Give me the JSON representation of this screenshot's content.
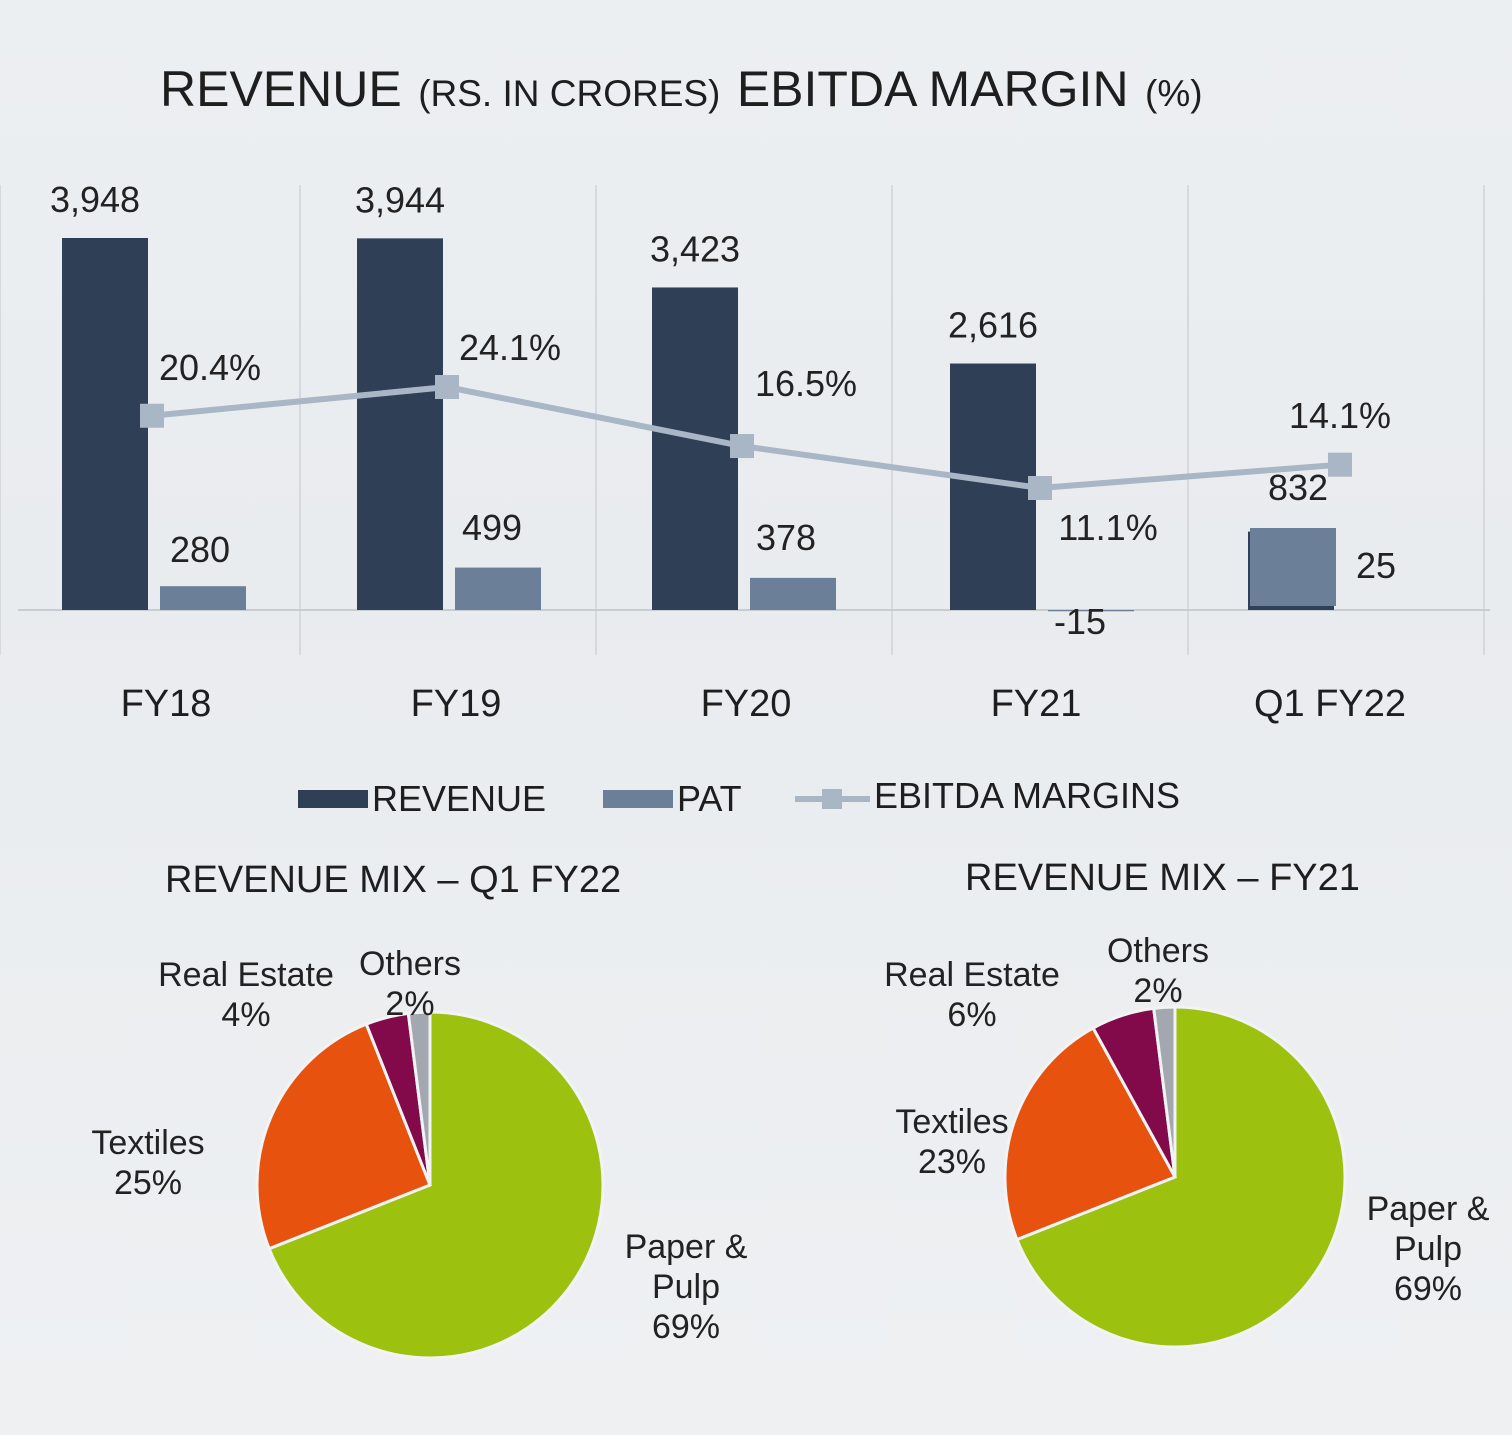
{
  "chart_data": [
    {
      "type": "bar",
      "title_parts": [
        "REVENUE",
        "(RS. IN CRORES)",
        "EBITDA MARGIN",
        "(%)"
      ],
      "categories": [
        "FY18",
        "FY19",
        "FY20",
        "FY21",
        "Q1 FY22"
      ],
      "series": [
        {
          "name": "REVENUE",
          "type": "bar",
          "color": "#2f3f55",
          "values": [
            3948,
            3944,
            3423,
            2616,
            832
          ],
          "labels": [
            "3,948",
            "3,944",
            "3,423",
            "2,616",
            "832"
          ]
        },
        {
          "name": "PAT",
          "type": "bar",
          "color": "#6b7f99",
          "values": [
            280,
            499,
            378,
            -15,
            25
          ],
          "labels": [
            "280",
            "499",
            "378",
            "-15",
            "25"
          ]
        },
        {
          "name": "EBITDA MARGINS",
          "type": "line",
          "color": "#a9b6c6",
          "values": [
            20.4,
            24.1,
            16.5,
            11.1,
            14.1
          ],
          "labels": [
            "20.4%",
            "24.1%",
            "16.5%",
            "11.1%",
            "14.1%"
          ]
        }
      ],
      "legend_position": "bottom",
      "grid": "vertical category separators"
    },
    {
      "type": "pie",
      "title": "REVENUE MIX – Q1 FY22",
      "slices": [
        {
          "name": "Paper &",
          "name2": "Pulp",
          "value": 69,
          "label": "69%",
          "color": "#9cc10f"
        },
        {
          "name": "Textiles",
          "value": 25,
          "label": "25%",
          "color": "#e8520f"
        },
        {
          "name": "Real Estate",
          "value": 4,
          "label": "4%",
          "color": "#820a4a"
        },
        {
          "name": "Others",
          "value": 2,
          "label": "2%",
          "color": "#a3a8b0"
        }
      ]
    },
    {
      "type": "pie",
      "title": "REVENUE MIX – FY21",
      "slices": [
        {
          "name": "Paper &",
          "name2": "Pulp",
          "value": 69,
          "label": "69%",
          "color": "#9cc10f"
        },
        {
          "name": "Textiles",
          "value": 23,
          "label": "23%",
          "color": "#e8520f"
        },
        {
          "name": "Real Estate",
          "value": 6,
          "label": "6%",
          "color": "#820a4a"
        },
        {
          "name": "Others",
          "value": 2,
          "label": "2%",
          "color": "#a3a8b0"
        }
      ]
    }
  ]
}
